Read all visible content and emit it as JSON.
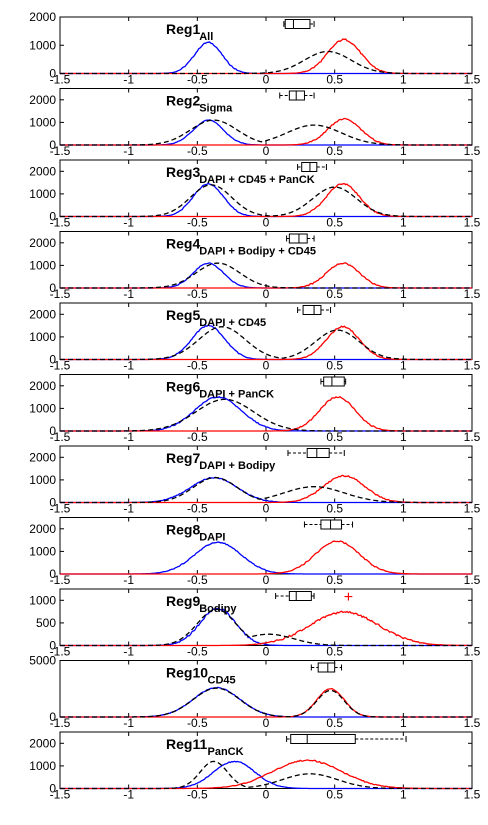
{
  "colors": {
    "red": "#ff0000",
    "blue": "#0000ff",
    "black": "#000000"
  },
  "chart_data": [
    {
      "type": "line",
      "title": "Reg1",
      "subtitle": "All",
      "xlim": [
        -1.5,
        1.5
      ],
      "ylim": [
        0,
        2000
      ],
      "yticks": [
        "2000",
        "1000",
        "0"
      ],
      "xticks": [
        "-1.5",
        "-1",
        "-0.5",
        "0",
        "0.5",
        "1",
        "1.5"
      ],
      "series": [
        {
          "color": "blue",
          "style": "solid",
          "mu": -0.42,
          "sigma": 0.1,
          "peak": 1100,
          "noise": 40
        },
        {
          "color": "red",
          "style": "solid",
          "mu": 0.57,
          "sigma": 0.12,
          "peak": 1200,
          "noise": 60
        },
        {
          "color": "black",
          "style": "dashed",
          "mu": 0.45,
          "sigma": 0.17,
          "peak": 780,
          "noise": 0
        }
      ],
      "box": {
        "min": 0.13,
        "q1": 0.14,
        "median": 0.2,
        "q3": 0.32,
        "max": 0.35,
        "outliers": []
      }
    },
    {
      "type": "line",
      "title": "Reg2",
      "subtitle": "Sigma",
      "xlim": [
        -1.5,
        1.5
      ],
      "ylim": [
        0,
        2500
      ],
      "yticks": [
        "2000",
        "1000",
        "0"
      ],
      "xticks": [
        "-1.5",
        "-1",
        "-0.5",
        "0",
        "0.5",
        "1",
        "1.5"
      ],
      "series": [
        {
          "color": "blue",
          "style": "solid",
          "mu": -0.42,
          "sigma": 0.11,
          "peak": 1100,
          "noise": 40
        },
        {
          "color": "red",
          "style": "solid",
          "mu": 0.57,
          "sigma": 0.12,
          "peak": 1150,
          "noise": 60
        },
        {
          "color": "black",
          "style": "dashed",
          "mu": -0.38,
          "sigma": 0.17,
          "peak": 1100,
          "noise": 0,
          "mu2": 0.35,
          "sigma2": 0.2,
          "peak2": 880
        }
      ],
      "box": {
        "min": 0.1,
        "q1": 0.17,
        "median": 0.22,
        "q3": 0.28,
        "max": 0.35,
        "outliers": []
      }
    },
    {
      "type": "line",
      "title": "Reg3",
      "subtitle": "DAPI + CD45 + PanCK",
      "xlim": [
        -1.5,
        1.5
      ],
      "ylim": [
        0,
        2500
      ],
      "yticks": [
        "2000",
        "1000",
        "0"
      ],
      "xticks": [
        "-1.5",
        "-1",
        "-0.5",
        "0",
        "0.5",
        "1",
        "1.5"
      ],
      "series": [
        {
          "color": "blue",
          "style": "solid",
          "mu": -0.42,
          "sigma": 0.11,
          "peak": 1450,
          "noise": 50
        },
        {
          "color": "red",
          "style": "solid",
          "mu": 0.56,
          "sigma": 0.12,
          "peak": 1450,
          "noise": 60
        },
        {
          "color": "black",
          "style": "dashed",
          "mu": -0.4,
          "sigma": 0.15,
          "peak": 1400,
          "noise": 0,
          "mu2": 0.5,
          "sigma2": 0.16,
          "peak2": 1300
        }
      ],
      "box": {
        "min": 0.23,
        "q1": 0.26,
        "median": 0.32,
        "q3": 0.37,
        "max": 0.44,
        "outliers": []
      }
    },
    {
      "type": "line",
      "title": "Reg4",
      "subtitle": "DAPI + Bodipy + CD45",
      "xlim": [
        -1.5,
        1.5
      ],
      "ylim": [
        0,
        2500
      ],
      "yticks": [
        "2000",
        "1000",
        "0"
      ],
      "xticks": [
        "-1.5",
        "-1",
        "-0.5",
        "0",
        "0.5",
        "1",
        "1.5"
      ],
      "series": [
        {
          "color": "blue",
          "style": "solid",
          "mu": -0.42,
          "sigma": 0.11,
          "peak": 1100,
          "noise": 40
        },
        {
          "color": "red",
          "style": "solid",
          "mu": 0.56,
          "sigma": 0.12,
          "peak": 1100,
          "noise": 60
        },
        {
          "color": "black",
          "style": "dashed",
          "mu": -0.35,
          "sigma": 0.16,
          "peak": 1100,
          "noise": 0
        }
      ],
      "box": {
        "min": 0.15,
        "q1": 0.17,
        "median": 0.24,
        "q3": 0.3,
        "max": 0.35,
        "outliers": []
      }
    },
    {
      "type": "line",
      "title": "Reg5",
      "subtitle": "DAPI + CD45",
      "xlim": [
        -1.5,
        1.5
      ],
      "ylim": [
        0,
        2500
      ],
      "yticks": [
        "2000",
        "1000",
        "0"
      ],
      "xticks": [
        "-1.5",
        "-1",
        "-0.5",
        "0",
        "0.5",
        "1",
        "1.5"
      ],
      "series": [
        {
          "color": "blue",
          "style": "solid",
          "mu": -0.42,
          "sigma": 0.12,
          "peak": 1500,
          "noise": 50
        },
        {
          "color": "red",
          "style": "solid",
          "mu": 0.56,
          "sigma": 0.12,
          "peak": 1450,
          "noise": 60
        },
        {
          "color": "black",
          "style": "dashed",
          "mu": -0.32,
          "sigma": 0.17,
          "peak": 1450,
          "noise": 0,
          "mu2": 0.52,
          "sigma2": 0.16,
          "peak2": 1300
        }
      ],
      "box": {
        "min": 0.23,
        "q1": 0.27,
        "median": 0.35,
        "q3": 0.4,
        "max": 0.47,
        "outliers": []
      }
    },
    {
      "type": "line",
      "title": "Reg6",
      "subtitle": "DAPI + PanCK",
      "xlim": [
        -1.5,
        1.5
      ],
      "ylim": [
        0,
        2500
      ],
      "yticks": [
        "2000",
        "1000",
        "0"
      ],
      "xticks": [
        "-1.5",
        "-1",
        "-0.5",
        "0",
        "0.5",
        "1",
        "1.5"
      ],
      "series": [
        {
          "color": "blue",
          "style": "solid",
          "mu": -0.35,
          "sigma": 0.17,
          "peak": 1500,
          "noise": 50
        },
        {
          "color": "red",
          "style": "solid",
          "mu": 0.52,
          "sigma": 0.13,
          "peak": 1500,
          "noise": 60
        },
        {
          "color": "black",
          "style": "dashed",
          "mu": -0.3,
          "sigma": 0.21,
          "peak": 1400,
          "noise": 0
        }
      ],
      "box": {
        "min": 0.4,
        "q1": 0.42,
        "median": 0.48,
        "q3": 0.57,
        "max": 0.58,
        "outliers": []
      }
    },
    {
      "type": "line",
      "title": "Reg7",
      "subtitle": "DAPI + Bodipy",
      "xlim": [
        -1.5,
        1.5
      ],
      "ylim": [
        0,
        2500
      ],
      "yticks": [
        "2000",
        "1000",
        "0"
      ],
      "xticks": [
        "-1.5",
        "-1",
        "-0.5",
        "0",
        "0.5",
        "1",
        "1.5"
      ],
      "series": [
        {
          "color": "blue",
          "style": "solid",
          "mu": -0.38,
          "sigma": 0.17,
          "peak": 1100,
          "noise": 40
        },
        {
          "color": "red",
          "style": "solid",
          "mu": 0.57,
          "sigma": 0.15,
          "peak": 1180,
          "noise": 60
        },
        {
          "color": "black",
          "style": "dashed",
          "mu": -0.37,
          "sigma": 0.16,
          "peak": 1100,
          "noise": 0,
          "mu2": 0.35,
          "sigma2": 0.22,
          "peak2": 700
        }
      ],
      "box": {
        "min": 0.16,
        "q1": 0.3,
        "median": 0.37,
        "q3": 0.46,
        "max": 0.57,
        "outliers": []
      }
    },
    {
      "type": "line",
      "title": "Reg8",
      "subtitle": "DAPI",
      "xlim": [
        -1.5,
        1.5
      ],
      "ylim": [
        0,
        2500
      ],
      "yticks": [
        "2000",
        "1000",
        "0"
      ],
      "xticks": [
        "-1.5",
        "-1",
        "-0.5",
        "0",
        "0.5",
        "1",
        "1.5"
      ],
      "series": [
        {
          "color": "blue",
          "style": "solid",
          "mu": -0.35,
          "sigma": 0.17,
          "peak": 1400,
          "noise": 40
        },
        {
          "color": "red",
          "style": "solid",
          "mu": 0.52,
          "sigma": 0.16,
          "peak": 1450,
          "noise": 60
        }
      ],
      "box": {
        "min": 0.28,
        "q1": 0.4,
        "median": 0.47,
        "q3": 0.55,
        "max": 0.63,
        "outliers": []
      }
    },
    {
      "type": "line",
      "title": "Reg9",
      "subtitle": "Bodipy",
      "xlim": [
        -1.5,
        1.5
      ],
      "ylim": [
        0,
        1250
      ],
      "yticks": [
        "1000",
        "500",
        "0"
      ],
      "xticks": [
        "-1.5",
        "-1",
        "-0.5",
        "0",
        "0.5",
        "1",
        "1.5"
      ],
      "series": [
        {
          "color": "blue",
          "style": "solid",
          "mu": -0.35,
          "sigma": 0.13,
          "peak": 820,
          "noise": 40
        },
        {
          "color": "red",
          "style": "solid",
          "mu": 0.57,
          "sigma": 0.25,
          "peak": 740,
          "noise": 40
        },
        {
          "color": "black",
          "style": "dashed",
          "mu": -0.36,
          "sigma": 0.14,
          "peak": 800,
          "noise": 0,
          "mu2": 0.02,
          "sigma2": 0.18,
          "peak2": 250
        }
      ],
      "box": {
        "min": 0.07,
        "q1": 0.17,
        "median": 0.22,
        "q3": 0.33,
        "max": 0.35,
        "outliers": [
          0.6
        ]
      }
    },
    {
      "type": "line",
      "title": "Reg10",
      "subtitle": "CD45",
      "xlim": [
        -1.5,
        1.5
      ],
      "ylim": [
        0,
        5000
      ],
      "yticks": [
        "5000",
        "0"
      ],
      "xticks": [
        "-1.5",
        "-1",
        "-0.5",
        "0",
        "0.5",
        "1",
        "1.5"
      ],
      "series": [
        {
          "color": "blue",
          "style": "solid",
          "mu": -0.36,
          "sigma": 0.17,
          "peak": 2600,
          "noise": 60
        },
        {
          "color": "red",
          "style": "solid",
          "mu": 0.47,
          "sigma": 0.1,
          "peak": 2500,
          "noise": 60
        },
        {
          "color": "black",
          "style": "dashed",
          "mu": -0.36,
          "sigma": 0.17,
          "peak": 2550,
          "noise": 0,
          "mu2": 0.47,
          "sigma2": 0.1,
          "peak2": 2350
        }
      ],
      "box": {
        "min": 0.33,
        "q1": 0.38,
        "median": 0.45,
        "q3": 0.5,
        "max": 0.55,
        "outliers": []
      }
    },
    {
      "type": "line",
      "title": "Reg11",
      "subtitle": "PanCK",
      "xlim": [
        -1.5,
        1.5
      ],
      "ylim": [
        0,
        2500
      ],
      "yticks": [
        "2000",
        "1000",
        "0"
      ],
      "xticks": [
        "-1.5",
        "-1",
        "-0.5",
        "0",
        "0.5",
        "1",
        "1.5"
      ],
      "series": [
        {
          "color": "blue",
          "style": "solid",
          "mu": -0.23,
          "sigma": 0.15,
          "peak": 1200,
          "noise": 40
        },
        {
          "color": "red",
          "style": "solid",
          "mu": 0.3,
          "sigma": 0.25,
          "peak": 1250,
          "noise": 50
        },
        {
          "color": "black",
          "style": "dashed",
          "mu": -0.38,
          "sigma": 0.1,
          "peak": 1200,
          "noise": 0,
          "mu2": 0.32,
          "sigma2": 0.2,
          "peak2": 650
        }
      ],
      "box": {
        "min": 0.15,
        "q1": 0.18,
        "median": 0.3,
        "q3": 0.65,
        "max": 1.02,
        "outliers": []
      }
    }
  ]
}
